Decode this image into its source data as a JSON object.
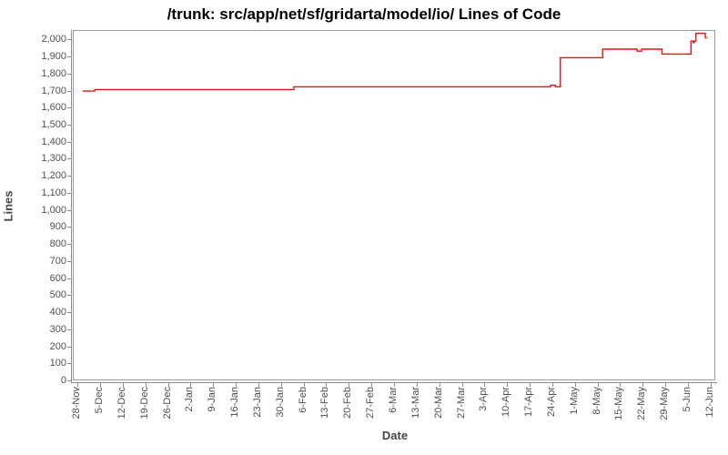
{
  "title": "/trunk: src/app/net/sf/gridarta/model/io/ Lines of Code",
  "chart_data": {
    "type": "line",
    "style": "step-after",
    "title": "/trunk: src/app/net/sf/gridarta/model/io/ Lines of Code",
    "xlabel": "Date",
    "ylabel": "Lines",
    "grid": false,
    "legend_position": "none",
    "line_color": "#e81414",
    "axis_color": "#8c8c8c",
    "tick_text_color": "#4f4f4f",
    "xlim_days": [
      -1.5,
      197.5
    ],
    "ylim": [
      0,
      2055
    ],
    "y_ticks": [
      0,
      100,
      200,
      300,
      400,
      500,
      600,
      700,
      800,
      900,
      1000,
      1100,
      1200,
      1300,
      1400,
      1500,
      1600,
      1700,
      1800,
      1900,
      2000
    ],
    "x_tick_interval_days": 7,
    "x_tick_labels": [
      "28-Nov",
      "5-Dec",
      "12-Dec",
      "19-Dec",
      "26-Dec",
      "2-Jan",
      "9-Jan",
      "16-Jan",
      "23-Jan",
      "30-Jan",
      "6-Feb",
      "13-Feb",
      "20-Feb",
      "27-Feb",
      "6-Mar",
      "13-Mar",
      "20-Mar",
      "27-Mar",
      "3-Apr",
      "10-Apr",
      "17-Apr",
      "24-Apr",
      "1-May",
      "8-May",
      "15-May",
      "22-May",
      "29-May",
      "5-Jun",
      "12-Jun"
    ],
    "series": [
      {
        "name": "Lines of Code",
        "note": "step plateaus: [day offset from 28-Nov, lines value]; value holds until next point",
        "points_day_value": [
          [
            1.5,
            1697
          ],
          [
            5.3,
            1706
          ],
          [
            67,
            1722
          ],
          [
            146.5,
            1731
          ],
          [
            148,
            1722
          ],
          [
            149.5,
            1893
          ],
          [
            162.6,
            1943
          ],
          [
            173.3,
            1931
          ],
          [
            174.7,
            1943
          ],
          [
            181,
            1914
          ],
          [
            190,
            1990
          ],
          [
            190.7,
            1981
          ],
          [
            191.0,
            1990
          ],
          [
            191.5,
            2036
          ],
          [
            194.4,
            2010
          ],
          [
            195.0,
            2010
          ]
        ]
      }
    ]
  }
}
